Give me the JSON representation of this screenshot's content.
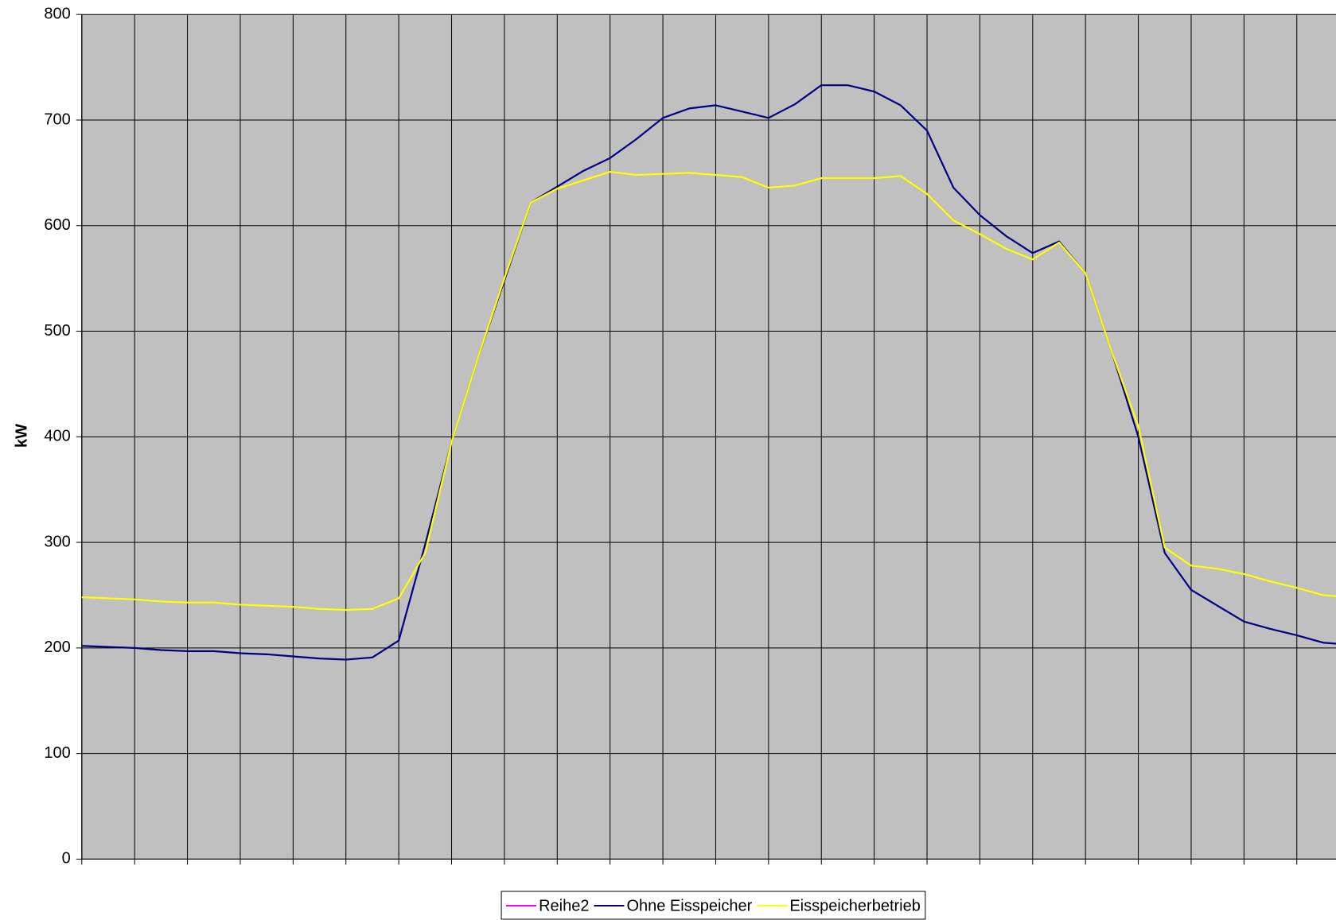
{
  "chart_data": {
    "type": "line",
    "y_label": "kW",
    "x": [
      0,
      0.5,
      1,
      1.5,
      2,
      2.5,
      3,
      3.5,
      4,
      4.5,
      5,
      5.5,
      6,
      6.5,
      7,
      7.5,
      8,
      8.5,
      9,
      9.5,
      10,
      10.5,
      11,
      11.5,
      12,
      12.5,
      13,
      13.5,
      14,
      14.5,
      15,
      15.5,
      16,
      16.5,
      17,
      17.5,
      18,
      18.5,
      19,
      19.5,
      20,
      20.5,
      21,
      21.5,
      22,
      22.5,
      23,
      23.5,
      24
    ],
    "series": [
      {
        "name": "Reihe2",
        "color": "#ff00ff",
        "values": [
          null,
          null,
          null,
          null,
          null,
          null,
          null,
          null,
          null,
          null,
          null,
          null,
          null,
          null,
          null,
          null,
          null,
          null,
          null,
          null,
          null,
          null,
          null,
          null,
          null,
          null,
          null,
          null,
          null,
          null,
          null,
          null,
          null,
          null,
          null,
          null,
          null,
          null,
          null,
          null,
          null,
          null,
          null,
          null,
          null,
          null,
          null,
          null,
          null
        ]
      },
      {
        "name": "Ohne Eisspeicher",
        "color": "#000080",
        "values": [
          202,
          201,
          200,
          198,
          197,
          197,
          195,
          194,
          192,
          190,
          189,
          191,
          207,
          298,
          395,
          475,
          548,
          622,
          637,
          652,
          664,
          682,
          702,
          711,
          714,
          708,
          702,
          715,
          733,
          733,
          727,
          714,
          690,
          636,
          610,
          590,
          574,
          585,
          555,
          480,
          400,
          290,
          255,
          240,
          225,
          218,
          212,
          205,
          203
        ]
      },
      {
        "name": "Eisspeicherbetrieb",
        "color": "#ffff00",
        "values": [
          248,
          247,
          246,
          244,
          243,
          243,
          241,
          240,
          239,
          237,
          236,
          237,
          247,
          290,
          395,
          475,
          550,
          622,
          635,
          643,
          651,
          648,
          649,
          650,
          648,
          646,
          636,
          638,
          645,
          645,
          645,
          647,
          630,
          605,
          592,
          578,
          568,
          584,
          555,
          480,
          410,
          295,
          278,
          275,
          270,
          263,
          257,
          250,
          248
        ]
      }
    ],
    "xlim": [
      0,
      24
    ],
    "xticks": [
      0,
      1,
      2,
      3,
      4,
      5,
      6,
      7,
      8,
      9,
      10,
      11,
      12,
      13,
      14,
      15,
      16,
      17,
      18,
      19,
      20,
      21,
      22,
      23,
      24
    ],
    "ylim": [
      0,
      800
    ],
    "yticks": [
      0,
      100,
      200,
      300,
      400,
      500,
      600,
      700,
      800
    ],
    "grid": true,
    "plot_background": "#c0c0c0",
    "legend": "bottom"
  }
}
